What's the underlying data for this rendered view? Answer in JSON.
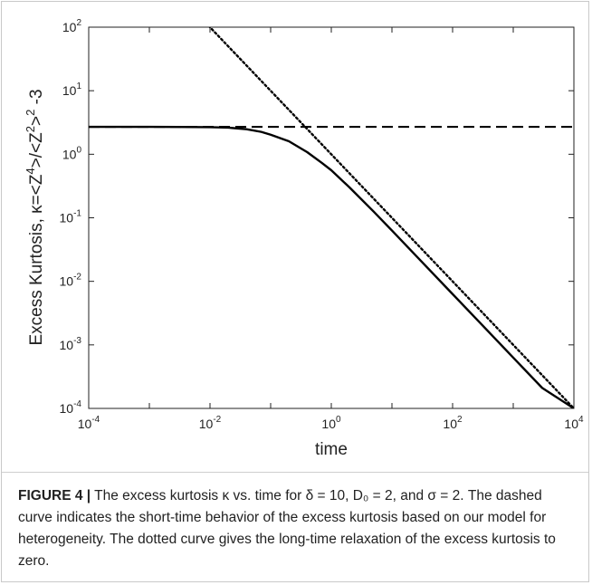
{
  "chart_data": {
    "type": "line",
    "xlabel": "time",
    "ylabel": "Excess Kurtosis, κ=<Z⁴>/<Z²>² -3",
    "x_scale": "log",
    "y_scale": "log",
    "xlim": [
      0.0001,
      10000
    ],
    "ylim": [
      0.0001,
      100
    ],
    "x_ticks": [
      {
        "base": "10",
        "exp": "-4",
        "value": 0.0001
      },
      {
        "base": "10",
        "exp": "-2",
        "value": 0.01
      },
      {
        "base": "10",
        "exp": "0",
        "value": 1
      },
      {
        "base": "10",
        "exp": "2",
        "value": 100
      },
      {
        "base": "10",
        "exp": "4",
        "value": 10000
      }
    ],
    "y_ticks": [
      {
        "base": "10",
        "exp": "2",
        "value": 100
      },
      {
        "base": "10",
        "exp": "1",
        "value": 10
      },
      {
        "base": "10",
        "exp": "0",
        "value": 1
      },
      {
        "base": "10",
        "exp": "-1",
        "value": 0.1
      },
      {
        "base": "10",
        "exp": "-2",
        "value": 0.01
      },
      {
        "base": "10",
        "exp": "-3",
        "value": 0.001
      },
      {
        "base": "10",
        "exp": "-4",
        "value": 0.0001
      }
    ],
    "grid": false,
    "series": [
      {
        "style": "solid",
        "color": "#000000",
        "x": [
          0.0001,
          0.001,
          0.003,
          0.01,
          0.02,
          0.04,
          0.07,
          0.1,
          0.2,
          0.4,
          0.7,
          1,
          2,
          5,
          10,
          30,
          100,
          300,
          1000,
          3000,
          10000
        ],
        "y": [
          2.7,
          2.7,
          2.69,
          2.67,
          2.62,
          2.48,
          2.25,
          2.03,
          1.6,
          1.08,
          0.73,
          0.56,
          0.3,
          0.125,
          0.063,
          0.021,
          0.0063,
          0.0021,
          0.00063,
          0.00021,
          0.0001
        ]
      },
      {
        "style": "dashed",
        "color": "#000000",
        "x": [
          0.0001,
          10000
        ],
        "y": [
          2.7,
          2.7
        ]
      },
      {
        "style": "dotted",
        "color": "#000000",
        "x": [
          0.0095,
          10000
        ],
        "y": [
          105,
          0.0001
        ]
      }
    ]
  },
  "caption": {
    "label": "FIGURE 4 |",
    "text": " The excess kurtosis κ vs. time for δ = 10, D₀ = 2, and σ = 2. The dashed curve indicates the short-time behavior of the excess kurtosis based on our model for heterogeneity. The dotted curve gives the long-time relaxation of the excess kurtosis to zero."
  }
}
